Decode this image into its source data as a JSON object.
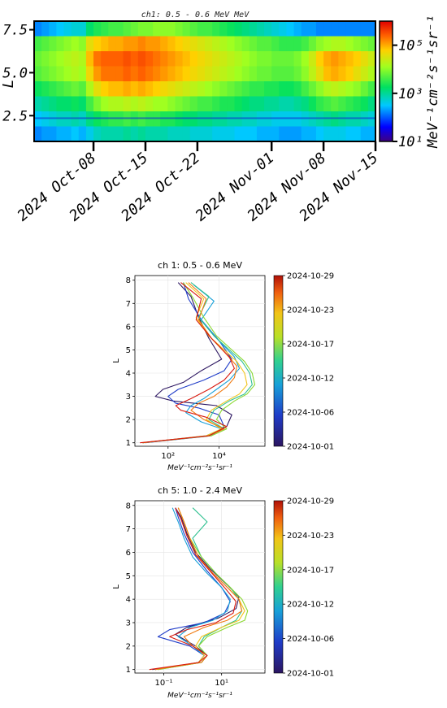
{
  "chart_data": [
    {
      "type": "heatmap",
      "title": "ch1: 0.5 - 0.6 MeV MeV",
      "ylabel": "L",
      "y_ticks": [
        "2.5",
        "5.0",
        "7.5"
      ],
      "ylim": [
        1.0,
        8.0
      ],
      "x_tick_labels": [
        "2024 Oct-08",
        "2024 Oct-15",
        "2024 Oct-22",
        "2024 Nov-01",
        "2024 Nov-08",
        "2024 Nov-15"
      ],
      "x_tick_days": [
        8,
        15,
        22,
        32,
        39,
        46
      ],
      "xlim_days": [
        0,
        46
      ],
      "colorbar": {
        "label": "MeV⁻¹cm⁻²s⁻¹sr⁻¹",
        "ticks": [
          "10¹",
          "10³",
          "10⁵"
        ],
        "scale": "log",
        "range": [
          1,
          6
        ]
      },
      "grid": true,
      "grid_note": "rows ~ L bands, cols ~ days; values are log10 flux",
      "grid_values": [
        [
          2.2,
          2.3,
          2.4,
          2.5,
          2.6,
          2.7,
          2.7,
          3.2,
          3.4,
          3.5,
          3.6,
          3.6,
          3.7,
          3.8,
          3.9,
          3.9,
          4.0,
          4.0,
          4.0,
          3.9,
          3.8,
          3.7,
          3.6,
          3.6,
          3.5,
          3.4,
          3.3,
          3.2,
          3.1,
          3.0,
          2.9,
          2.8,
          2.7,
          2.6,
          2.5,
          2.4,
          2.3,
          2.3,
          2.2,
          2.2,
          2.2,
          2.2,
          2.2,
          2.2,
          2.2,
          2.2
        ],
        [
          3.6,
          3.7,
          3.8,
          3.9,
          4.0,
          4.1,
          4.0,
          4.6,
          4.8,
          4.9,
          5.0,
          5.0,
          5.1,
          5.1,
          5.2,
          5.1,
          5.1,
          5.0,
          4.9,
          4.8,
          4.7,
          4.6,
          4.5,
          4.4,
          4.3,
          4.2,
          4.1,
          4.0,
          3.9,
          3.8,
          3.7,
          3.7,
          3.6,
          3.5,
          3.5,
          3.5,
          3.6,
          3.8,
          4.0,
          4.1,
          4.2,
          4.2,
          4.1,
          4.0,
          3.9,
          3.8
        ],
        [
          3.8,
          3.9,
          4.0,
          4.1,
          4.2,
          4.3,
          4.2,
          4.9,
          5.3,
          5.4,
          5.4,
          5.4,
          5.5,
          5.4,
          5.5,
          5.4,
          5.3,
          5.2,
          5.1,
          5.0,
          4.9,
          4.8,
          4.7,
          4.6,
          4.5,
          4.4,
          4.3,
          4.2,
          4.1,
          4.0,
          3.9,
          3.9,
          3.8,
          3.8,
          3.8,
          3.9,
          4.1,
          4.4,
          4.8,
          5.0,
          5.1,
          5.0,
          4.9,
          4.8,
          4.6,
          4.4
        ],
        [
          3.7,
          3.8,
          3.9,
          4.0,
          4.1,
          4.2,
          4.1,
          4.7,
          5.1,
          5.3,
          5.3,
          5.3,
          5.4,
          5.3,
          5.4,
          5.3,
          5.2,
          5.1,
          5.0,
          4.9,
          4.8,
          4.7,
          4.6,
          4.5,
          4.4,
          4.3,
          4.2,
          4.1,
          4.0,
          3.9,
          3.8,
          3.8,
          3.7,
          3.7,
          3.7,
          3.8,
          4.0,
          4.3,
          4.6,
          4.9,
          5.0,
          4.9,
          4.8,
          4.6,
          4.4,
          4.2
        ],
        [
          3.3,
          3.4,
          3.5,
          3.6,
          3.7,
          3.8,
          3.7,
          4.2,
          4.6,
          4.8,
          4.9,
          4.9,
          5.0,
          4.9,
          5.0,
          4.9,
          4.8,
          4.7,
          4.6,
          4.5,
          4.4,
          4.3,
          4.2,
          4.1,
          4.0,
          3.9,
          3.8,
          3.7,
          3.6,
          3.5,
          3.5,
          3.4,
          3.4,
          3.3,
          3.3,
          3.4,
          3.6,
          3.8,
          4.0,
          4.2,
          4.3,
          4.2,
          4.1,
          4.0,
          3.8,
          3.6
        ],
        [
          2.9,
          3.0,
          3.1,
          3.2,
          3.2,
          3.3,
          3.2,
          3.6,
          3.9,
          4.1,
          4.2,
          4.2,
          4.3,
          4.2,
          4.3,
          4.2,
          4.1,
          4.1,
          4.0,
          3.9,
          3.8,
          3.7,
          3.6,
          3.6,
          3.5,
          3.4,
          3.4,
          3.3,
          3.2,
          3.1,
          3.1,
          3.0,
          3.0,
          2.9,
          2.9,
          3.0,
          3.1,
          3.3,
          3.5,
          3.6,
          3.7,
          3.6,
          3.5,
          3.4,
          3.3,
          3.1
        ],
        [
          2.5,
          2.6,
          2.7,
          2.8,
          2.8,
          2.9,
          2.8,
          3.1,
          3.3,
          3.4,
          3.5,
          3.5,
          3.6,
          3.5,
          3.6,
          3.5,
          3.5,
          3.4,
          3.4,
          3.3,
          3.2,
          3.2,
          3.1,
          3.1,
          3.0,
          3.0,
          2.9,
          2.9,
          2.8,
          2.8,
          2.7,
          2.7,
          2.6,
          2.6,
          2.6,
          2.6,
          2.7,
          2.8,
          2.9,
          3.0,
          3.1,
          3.0,
          2.9,
          2.9,
          2.8,
          2.7
        ],
        [
          2.2,
          2.3,
          2.3,
          2.4,
          2.4,
          2.5,
          2.4,
          2.6,
          2.8,
          2.9,
          2.9,
          2.9,
          3.0,
          2.9,
          3.0,
          2.9,
          2.9,
          2.9,
          2.8,
          2.8,
          2.8,
          2.7,
          2.7,
          2.7,
          2.6,
          2.6,
          2.6,
          2.5,
          2.5,
          2.5,
          2.4,
          2.4,
          2.4,
          2.3,
          2.3,
          2.3,
          2.4,
          2.4,
          2.5,
          2.6,
          2.6,
          2.6,
          2.5,
          2.5,
          2.4,
          2.4
        ]
      ]
    },
    {
      "type": "line",
      "title": "ch 1: 0.5 - 0.6 MeV",
      "ylabel": "L",
      "xlabel": "MeV⁻¹cm⁻²s⁻¹sr⁻¹",
      "x_scale": "log",
      "x_ticks": [
        {
          "value": 2,
          "label": "10²"
        },
        {
          "value": 4,
          "label": "10⁴"
        }
      ],
      "xlim_log10": [
        0.7,
        5.8
      ],
      "y_ticks": [
        "1",
        "2",
        "3",
        "4",
        "5",
        "6",
        "7",
        "8"
      ],
      "ylim": [
        0.85,
        8.2
      ],
      "grid": true,
      "colorbar": {
        "labels": [
          "2024-10-29",
          "2024-10-23",
          "2024-10-17",
          "2024-10-12",
          "2024-10-06",
          "2024-10-01"
        ]
      },
      "series_note": "x values are log10 flux",
      "series": [
        {
          "color": "#2b1560",
          "x": [
            1.0,
            3.6,
            4.3,
            4.5,
            3.9,
            2.2,
            1.5,
            1.8,
            2.6,
            3.3,
            4.1,
            3.6,
            3.2,
            2.9,
            2.4
          ],
          "y": [
            1.0,
            1.3,
            1.7,
            2.2,
            2.6,
            2.8,
            3.0,
            3.3,
            3.6,
            4.1,
            4.6,
            5.5,
            6.4,
            7.3,
            7.9
          ]
        },
        {
          "color": "#1f3cc8",
          "x": [
            1.1,
            3.7,
            4.2,
            4.0,
            3.2,
            2.3,
            2.0,
            2.4,
            3.4,
            4.2,
            4.5,
            4.0,
            3.3,
            2.8,
            2.6
          ],
          "y": [
            1.0,
            1.3,
            1.7,
            2.2,
            2.5,
            2.7,
            3.0,
            3.3,
            3.7,
            4.1,
            4.6,
            5.4,
            6.3,
            7.2,
            7.9
          ]
        },
        {
          "color": "#18a0d8",
          "x": [
            1.0,
            3.5,
            4.1,
            3.3,
            2.7,
            2.9,
            3.4,
            3.9,
            4.4,
            4.8,
            4.6,
            3.9,
            3.3,
            3.8,
            3.0
          ],
          "y": [
            1.0,
            1.3,
            1.6,
            1.9,
            2.3,
            2.6,
            2.9,
            3.3,
            3.7,
            4.2,
            4.7,
            5.5,
            6.3,
            7.1,
            7.8
          ]
        },
        {
          "color": "#30c090",
          "x": [
            1.0,
            3.6,
            4.2,
            3.6,
            3.8,
            4.4,
            5.0,
            5.3,
            5.2,
            4.9,
            4.4,
            3.8,
            3.2,
            3.6,
            2.9
          ],
          "y": [
            1.0,
            1.3,
            1.6,
            2.0,
            2.4,
            2.8,
            3.1,
            3.5,
            4.0,
            4.5,
            5.0,
            5.6,
            6.4,
            7.3,
            7.9
          ]
        },
        {
          "color": "#8ad830",
          "x": [
            1.0,
            3.7,
            4.3,
            3.9,
            4.1,
            4.6,
            5.1,
            5.4,
            5.3,
            5.0,
            4.5,
            3.9,
            3.4,
            3.0,
            2.6
          ],
          "y": [
            1.0,
            1.3,
            1.6,
            2.0,
            2.4,
            2.8,
            3.1,
            3.5,
            4.0,
            4.5,
            5.0,
            5.6,
            6.4,
            7.2,
            7.9
          ]
        },
        {
          "color": "#f2c418",
          "x": [
            1.0,
            3.5,
            4.1,
            3.5,
            3.7,
            4.3,
            4.8,
            5.1,
            5.0,
            4.7,
            4.2,
            3.6,
            3.1,
            3.4,
            2.7
          ],
          "y": [
            1.0,
            1.3,
            1.6,
            2.0,
            2.4,
            2.8,
            3.1,
            3.5,
            4.0,
            4.5,
            5.0,
            5.6,
            6.4,
            7.2,
            7.9
          ]
        },
        {
          "color": "#f07a10",
          "x": [
            1.0,
            3.6,
            4.2,
            3.4,
            2.9,
            3.2,
            3.8,
            4.3,
            4.6,
            4.7,
            4.3,
            3.7,
            3.2,
            3.5,
            2.8
          ],
          "y": [
            1.0,
            1.3,
            1.6,
            2.0,
            2.4,
            2.7,
            3.0,
            3.4,
            3.8,
            4.3,
            4.8,
            5.5,
            6.3,
            7.2,
            7.9
          ]
        },
        {
          "color": "#d81a10",
          "x": [
            0.9,
            3.6,
            4.3,
            3.5,
            2.5,
            2.3,
            2.9,
            3.6,
            4.2,
            4.6,
            4.4,
            3.7,
            3.1,
            3.3,
            2.5
          ],
          "y": [
            1.0,
            1.3,
            1.7,
            2.1,
            2.4,
            2.6,
            2.9,
            3.3,
            3.7,
            4.2,
            4.7,
            5.5,
            6.3,
            7.2,
            7.9
          ]
        }
      ]
    },
    {
      "type": "line",
      "title": "ch 5: 1.0 - 2.4 MeV",
      "ylabel": "L",
      "xlabel": "MeV⁻¹cm⁻²s⁻¹sr⁻¹",
      "x_scale": "log",
      "x_ticks": [
        {
          "value": -1,
          "label": "10⁻¹"
        },
        {
          "value": 1,
          "label": "10¹"
        }
      ],
      "xlim_log10": [
        -2.0,
        2.5
      ],
      "y_ticks": [
        "1",
        "2",
        "3",
        "4",
        "5",
        "6",
        "7",
        "8"
      ],
      "ylim": [
        0.85,
        8.2
      ],
      "grid": true,
      "colorbar": {
        "labels": [
          "2024-10-29",
          "2024-10-23",
          "2024-10-17",
          "2024-10-12",
          "2024-10-06",
          "2024-10-01"
        ]
      },
      "series_note": "x values are log10 flux",
      "series": [
        {
          "color": "#2b1560",
          "x": [
            -1.4,
            0.3,
            0.5,
            0.1,
            -0.6,
            -0.2,
            0.9,
            1.5,
            1.6,
            1.2,
            0.6,
            0.1,
            -0.2,
            -0.4,
            -0.6
          ],
          "y": [
            1.0,
            1.3,
            1.6,
            2.0,
            2.5,
            2.8,
            3.2,
            3.6,
            4.1,
            4.6,
            5.3,
            6.0,
            6.8,
            7.5,
            7.9
          ]
        },
        {
          "color": "#1f3cc8",
          "x": [
            -1.3,
            0.2,
            0.4,
            -0.1,
            -1.2,
            -0.8,
            0.4,
            1.1,
            1.3,
            1.0,
            0.5,
            0.0,
            -0.3,
            -0.5,
            -0.6
          ],
          "y": [
            1.0,
            1.3,
            1.6,
            2.0,
            2.4,
            2.7,
            3.0,
            3.4,
            3.9,
            4.5,
            5.2,
            6.0,
            6.8,
            7.5,
            7.9
          ]
        },
        {
          "color": "#18a0d8",
          "x": [
            -1.3,
            0.2,
            0.4,
            0.0,
            -0.5,
            -0.1,
            0.7,
            1.2,
            1.3,
            1.0,
            0.5,
            0.0,
            -0.3,
            -0.5,
            -0.7
          ],
          "y": [
            1.0,
            1.3,
            1.6,
            2.0,
            2.4,
            2.8,
            3.1,
            3.5,
            4.0,
            4.5,
            5.1,
            5.8,
            6.6,
            7.3,
            7.9
          ]
        },
        {
          "color": "#30c090",
          "x": [
            -1.2,
            0.3,
            0.5,
            0.2,
            0.4,
            1.0,
            1.5,
            1.7,
            1.6,
            1.3,
            0.8,
            0.3,
            0.0,
            0.5,
            0.0
          ],
          "y": [
            1.0,
            1.3,
            1.6,
            2.0,
            2.4,
            2.8,
            3.1,
            3.5,
            4.0,
            4.5,
            5.1,
            5.8,
            6.6,
            7.3,
            7.9
          ]
        },
        {
          "color": "#8ad830",
          "x": [
            -1.2,
            0.3,
            0.5,
            0.2,
            0.5,
            1.2,
            1.8,
            1.9,
            1.7,
            1.3,
            0.8,
            0.3,
            -0.1,
            -0.3,
            -0.5
          ],
          "y": [
            1.0,
            1.3,
            1.6,
            2.0,
            2.4,
            2.8,
            3.1,
            3.5,
            4.0,
            4.5,
            5.1,
            5.8,
            6.6,
            7.3,
            7.9
          ]
        },
        {
          "color": "#f2c418",
          "x": [
            -1.3,
            0.2,
            0.4,
            0.1,
            0.3,
            1.0,
            1.6,
            1.8,
            1.6,
            1.2,
            0.7,
            0.2,
            -0.1,
            -0.3,
            -0.5
          ],
          "y": [
            1.0,
            1.3,
            1.6,
            2.0,
            2.4,
            2.8,
            3.1,
            3.5,
            4.0,
            4.5,
            5.1,
            5.8,
            6.6,
            7.3,
            7.9
          ]
        },
        {
          "color": "#f07a10",
          "x": [
            -1.3,
            0.3,
            0.5,
            0.0,
            -0.3,
            0.4,
            1.2,
            1.7,
            1.6,
            1.2,
            0.7,
            0.2,
            -0.1,
            -0.3,
            -0.5
          ],
          "y": [
            1.0,
            1.3,
            1.6,
            2.0,
            2.4,
            2.8,
            3.1,
            3.5,
            4.0,
            4.5,
            5.1,
            5.8,
            6.6,
            7.3,
            7.9
          ]
        },
        {
          "color": "#d81a10",
          "x": [
            -1.5,
            0.2,
            0.5,
            0.0,
            -0.8,
            -0.2,
            0.8,
            1.4,
            1.5,
            1.1,
            0.6,
            0.1,
            -0.2,
            -0.4,
            -0.6
          ],
          "y": [
            1.0,
            1.3,
            1.6,
            2.0,
            2.4,
            2.7,
            3.0,
            3.4,
            3.9,
            4.5,
            5.2,
            5.9,
            6.7,
            7.4,
            7.9
          ]
        }
      ]
    }
  ]
}
